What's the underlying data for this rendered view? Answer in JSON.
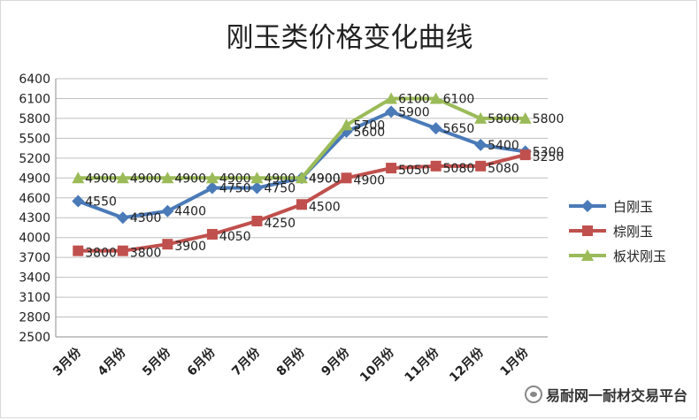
{
  "chart_data": {
    "type": "line",
    "title": "刚玉类价格变化曲线",
    "categories": [
      "3月份",
      "4月份",
      "5月份",
      "6月份",
      "7月份",
      "8月份",
      "9月份",
      "10月份",
      "11月份",
      "12月份",
      "1月份"
    ],
    "ylim": [
      2500,
      6400
    ],
    "yticks": [
      2500,
      2800,
      3100,
      3400,
      3700,
      4000,
      4300,
      4600,
      4900,
      5200,
      5500,
      5800,
      6100,
      6400
    ],
    "grid": true,
    "legend_position": "right",
    "series": [
      {
        "name": "白刚玉",
        "color": "#4a7ab8",
        "marker": "diamond",
        "values": [
          4550,
          4300,
          4400,
          4750,
          4750,
          4900,
          5600,
          5900,
          5650,
          5400,
          5300
        ]
      },
      {
        "name": "棕刚玉",
        "color": "#c0504d",
        "marker": "square",
        "values": [
          3800,
          3800,
          3900,
          4050,
          4250,
          4500,
          4900,
          5050,
          5080,
          5080,
          5250
        ]
      },
      {
        "name": "板状刚玉",
        "color": "#9bbb59",
        "marker": "triangle",
        "values": [
          4900,
          4900,
          4900,
          4900,
          4900,
          4900,
          5700,
          6100,
          6100,
          5800,
          5800
        ]
      }
    ]
  },
  "watermark": {
    "text": "易耐网一耐材交易平台",
    "icon": "wechat-icon"
  }
}
